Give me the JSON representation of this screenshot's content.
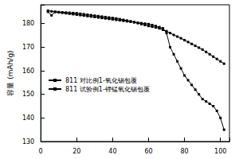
{
  "chart_data": {
    "type": "line",
    "ylabel": "容量 (mAh/g)",
    "x": [
      4,
      6,
      8,
      10,
      12,
      14,
      16,
      18,
      20,
      22,
      24,
      26,
      28,
      30,
      32,
      34,
      36,
      38,
      40,
      42,
      44,
      46,
      48,
      50,
      52,
      54,
      56,
      58,
      60,
      62,
      64,
      66,
      68,
      70,
      72,
      74,
      76,
      78,
      80,
      82,
      84,
      86,
      88,
      90,
      92,
      94,
      96,
      98,
      100,
      102
    ],
    "series": [
      {
        "name": "811 对比例1-氧化锡包覆",
        "color": "#000000",
        "marker": "square",
        "line_style": "solid",
        "values": [
          185,
          183.5,
          185,
          184.8,
          184.6,
          184.4,
          184.2,
          184,
          183.8,
          183.6,
          183.4,
          183.2,
          183,
          182.8,
          182.6,
          182.4,
          182.2,
          182,
          181.8,
          181.6,
          181.4,
          181.2,
          181,
          180.8,
          180.6,
          180.4,
          180.2,
          180,
          179.8,
          179.4,
          179,
          178.5,
          178,
          176,
          170,
          167,
          164,
          161,
          158,
          156,
          154,
          152,
          150,
          148,
          147,
          146,
          145,
          143,
          140,
          135
        ]
      },
      {
        "name": "811 试验例1-锂锰氧化锡包覆",
        "color": "#000000",
        "marker": "square",
        "line_style": "solid",
        "values": [
          185.5,
          185.2,
          185,
          184.9,
          184.8,
          184.7,
          184.6,
          184.5,
          184.4,
          184.2,
          184,
          183.8,
          183.6,
          183.4,
          183.2,
          183,
          182.8,
          182.6,
          182.4,
          182.2,
          181.9,
          181.6,
          181.3,
          181,
          180.6,
          180.2,
          179.8,
          179.4,
          179,
          178.7,
          178.4,
          178,
          177.4,
          176.8,
          176,
          175.2,
          174.5,
          173.8,
          173,
          172.2,
          171.4,
          170.6,
          169.8,
          169,
          168,
          167,
          166,
          165,
          164,
          163
        ]
      }
    ],
    "xlim": [
      0,
      105
    ],
    "xticks": [
      0,
      20,
      40,
      60,
      80,
      100
    ],
    "ylim": [
      130,
      188
    ],
    "yticks": [
      130,
      140,
      150,
      160,
      170,
      180
    ],
    "grid": false,
    "legend": "center left"
  }
}
